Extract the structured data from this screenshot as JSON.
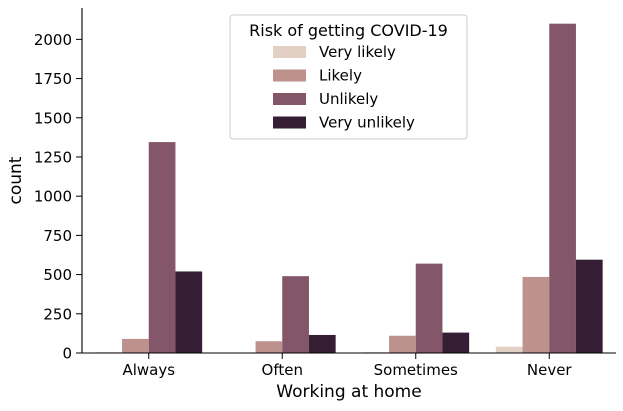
{
  "chart_data": {
    "type": "bar",
    "xlabel": "Working at home",
    "ylabel": "count",
    "categories": [
      "Always",
      "Often",
      "Sometimes",
      "Never"
    ],
    "ylim": [
      0,
      2200
    ],
    "yticks": [
      0,
      250,
      500,
      750,
      1000,
      1250,
      1500,
      1750,
      2000
    ],
    "grid": false,
    "legend_position": "top-center",
    "legend_title": "Risk of getting COVID-19",
    "series": [
      {
        "name": "Very likely",
        "color": "#e2d0c4",
        "values": [
          5,
          3,
          5,
          40
        ]
      },
      {
        "name": "Likely",
        "color": "#bd918c",
        "values": [
          90,
          75,
          110,
          485
        ]
      },
      {
        "name": "Unlikely",
        "color": "#84566a",
        "values": [
          1345,
          490,
          570,
          2100
        ]
      },
      {
        "name": "Very unlikely",
        "color": "#351e33",
        "values": [
          520,
          115,
          130,
          595
        ]
      }
    ]
  }
}
